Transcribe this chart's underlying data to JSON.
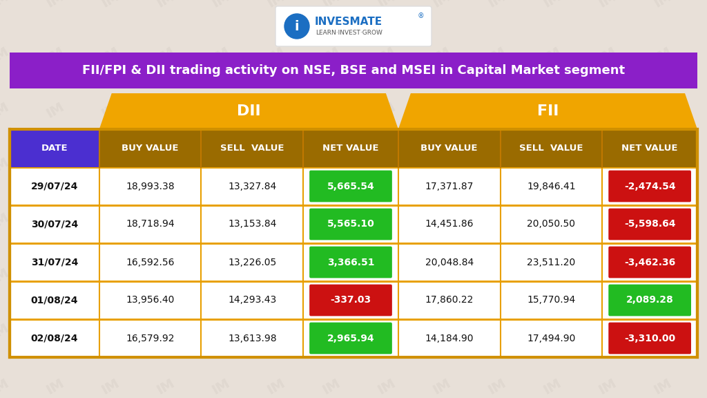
{
  "title": "FII/FPI & DII trading activity on NSE, BSE and MSEI in Capital Market segment",
  "title_bg": "#8B1FC8",
  "title_color": "#FFFFFF",
  "header_bg": "#F0A500",
  "header_color": "#FFFFFF",
  "col_header_bg": "#9A6B00",
  "col_header_color": "#FFFFFF",
  "date_col_bg": "#4B2FD0",
  "date_col_color": "#FFFFFF",
  "row_bg": "#FFFFFF",
  "row_text_color": "#111111",
  "row_border_color": "#E8A000",
  "green_bg": "#22BB22",
  "red_bg": "#CC1111",
  "net_text_color": "#FFFFFF",
  "outer_bg": "#E0D8D0",
  "outer_border": "#D09000",
  "columns": [
    "DATE",
    "BUY VALUE",
    "SELL  VALUE",
    "NET VALUE",
    "BUY VALUE",
    "SELL  VALUE",
    "NET VALUE"
  ],
  "rows": [
    {
      "date": "29/07/24",
      "dii_buy": "18,993.38",
      "dii_sell": "13,327.84",
      "dii_net": "5,665.54",
      "dii_net_pos": true,
      "fii_buy": "17,371.87",
      "fii_sell": "19,846.41",
      "fii_net": "-2,474.54",
      "fii_net_pos": false
    },
    {
      "date": "30/07/24",
      "dii_buy": "18,718.94",
      "dii_sell": "13,153.84",
      "dii_net": "5,565.10",
      "dii_net_pos": true,
      "fii_buy": "14,451.86",
      "fii_sell": "20,050.50",
      "fii_net": "-5,598.64",
      "fii_net_pos": false
    },
    {
      "date": "31/07/24",
      "dii_buy": "16,592.56",
      "dii_sell": "13,226.05",
      "dii_net": "3,366.51",
      "dii_net_pos": true,
      "fii_buy": "20,048.84",
      "fii_sell": "23,511.20",
      "fii_net": "-3,462.36",
      "fii_net_pos": false
    },
    {
      "date": "01/08/24",
      "dii_buy": "13,956.40",
      "dii_sell": "14,293.43",
      "dii_net": "-337.03",
      "dii_net_pos": false,
      "fii_buy": "17,860.22",
      "fii_sell": "15,770.94",
      "fii_net": "2,089.28",
      "fii_net_pos": true
    },
    {
      "date": "02/08/24",
      "dii_buy": "16,579.92",
      "dii_sell": "13,613.98",
      "dii_net": "2,965.94",
      "dii_net_pos": true,
      "fii_buy": "14,184.90",
      "fii_sell": "17,494.90",
      "fii_net": "-3,310.00",
      "fii_net_pos": false
    }
  ]
}
